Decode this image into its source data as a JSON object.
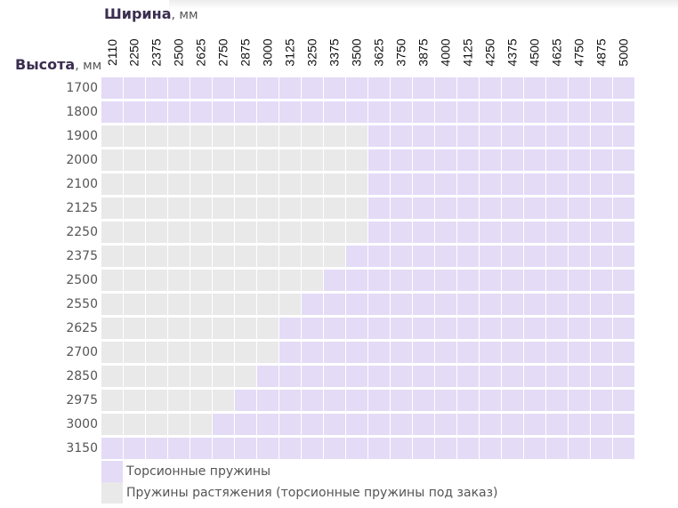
{
  "chart_data": {
    "type": "heatmap",
    "xaxis": {
      "label": "Ширина",
      "unit": ", мм"
    },
    "yaxis": {
      "label": "Высота",
      "unit": ", мм"
    },
    "widths": [
      2110,
      2250,
      2375,
      2500,
      2625,
      2750,
      2875,
      3000,
      3125,
      3250,
      3375,
      3500,
      3625,
      3750,
      3875,
      4000,
      4125,
      4250,
      4375,
      4500,
      4625,
      4750,
      4875,
      5000
    ],
    "heights": [
      1700,
      1800,
      1900,
      2000,
      2100,
      2125,
      2250,
      2375,
      2500,
      2550,
      2625,
      2700,
      2850,
      2975,
      3000,
      3150
    ],
    "categories": [
      {
        "key": "T",
        "label": "Торсионные пружины",
        "color": "#e4dbf7"
      },
      {
        "key": "E",
        "label": "Пружины растяжения (торсионные пружины под заказ)",
        "color": "#e8e9e8"
      }
    ],
    "matrix": [
      "TTTTTTTTTTTTTTTTTTTTTTTT",
      "TTTTTTTTTTTTTTTTTTTTTTTT",
      "EEEEEEEEEEEETTTTTTTTTTTT",
      "EEEEEEEEEEEETTTTTTTTTTTT",
      "EEEEEEEEEEEETTTTTTTTTTTT",
      "EEEEEEEEEEEETTTTTTTTTTTT",
      "EEEEEEEEEEEETTTTTTTTTTTT",
      "EEEEEEEEEEETTTTTTTTTTTTT",
      "EEEEEEEEEETTTTTTTTTTTTTT",
      "EEEEEEEEETTTTTTTTTTTTTTT",
      "EEEEEEEETTTTTTTTTTTTTTTT",
      "EEEEEEEETTTTTTTTTTTTTTTT",
      "EEEEEEETTTTTTTTTTTTTTTTT",
      "EEEEEETTTTTTTTTTTTTTTTTT",
      "EEEEETTTTTTTTTTTTTTTTTTT",
      "TTTTTTTTTTTTTTTTTTTTTTTT"
    ]
  }
}
